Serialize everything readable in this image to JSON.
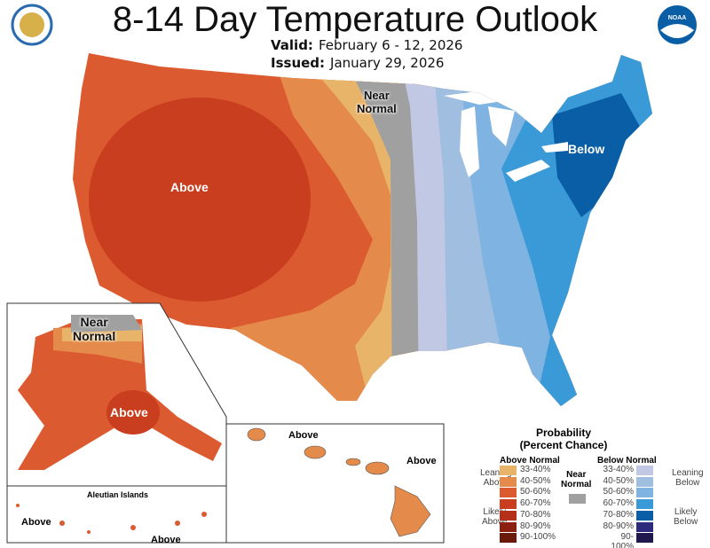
{
  "title": "8-14 Day Temperature Outlook",
  "valid_label": "Valid:",
  "valid_value": "February 6 - 12, 2026",
  "issued_label": "Issued:",
  "issued_value": "January 29, 2026",
  "logos": {
    "left": "Department of Commerce seal",
    "right": "NOAA"
  },
  "map_labels": {
    "near_normal": "Near\nNormal",
    "near": "Near",
    "normal": "Normal",
    "below": "Below",
    "above": "Above",
    "alaska_near": "Near",
    "alaska_normal": "Normal",
    "alaska_above": "Above",
    "hawaii_above_1": "Above",
    "hawaii_above_2": "Above",
    "aleutian_title": "Aleutian Islands",
    "aleutian_above_1": "Above",
    "aleutian_above_2": "Above"
  },
  "legend": {
    "title1": "Probability",
    "title2": "(Percent Chance)",
    "above_header": "Above Normal",
    "below_header": "Below Normal",
    "near_header1": "Near",
    "near_header2": "Normal",
    "leaning_above": [
      "Leaning",
      "Above"
    ],
    "likely_above": [
      "Likely",
      "Above"
    ],
    "leaning_below": [
      "Leaning",
      "Below"
    ],
    "likely_below": [
      "Likely",
      "Below"
    ],
    "above": [
      {
        "range": "33-40%",
        "color": "#e8b46a"
      },
      {
        "range": "40-50%",
        "color": "#e48a4a"
      },
      {
        "range": "50-60%",
        "color": "#dc5a30"
      },
      {
        "range": "60-70%",
        "color": "#c83e1e"
      },
      {
        "range": "70-80%",
        "color": "#b5301a"
      },
      {
        "range": "80-90%",
        "color": "#8c2010"
      },
      {
        "range": "90-100%",
        "color": "#6a1a0a"
      }
    ],
    "below": [
      {
        "range": "33-40%",
        "color": "#c0c8e4"
      },
      {
        "range": "40-50%",
        "color": "#a0bedf"
      },
      {
        "range": "50-60%",
        "color": "#7fb4e2"
      },
      {
        "range": "60-70%",
        "color": "#3a9ad8"
      },
      {
        "range": "70-80%",
        "color": "#0a5ea6"
      },
      {
        "range": "80-90%",
        "color": "#2e2a7e"
      },
      {
        "range": "90-100%",
        "color": "#1e1a50"
      }
    ],
    "near_color": "#a0a0a0"
  }
}
